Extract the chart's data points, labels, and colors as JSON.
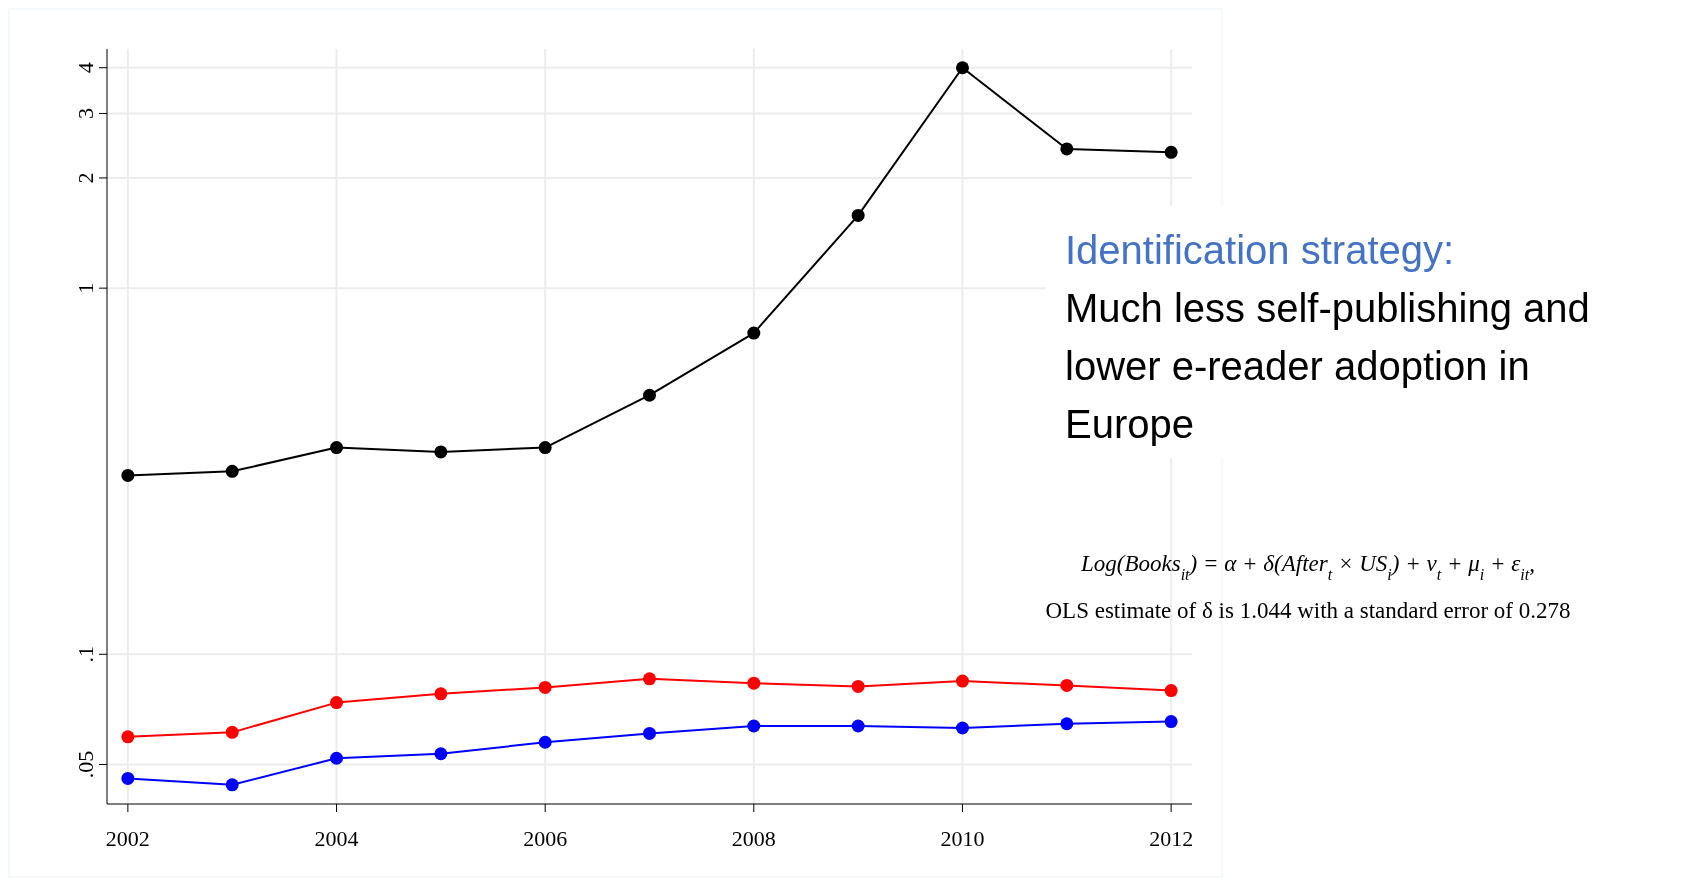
{
  "chart_data": {
    "type": "line",
    "x": [
      2002,
      2003,
      2004,
      2005,
      2006,
      2007,
      2008,
      2009,
      2010,
      2011,
      2012
    ],
    "series": [
      {
        "color": "#000000",
        "values": [
          0.308,
          0.316,
          0.367,
          0.357,
          0.367,
          0.51,
          0.754,
          1.58,
          4.0,
          2.4,
          2.35
        ]
      },
      {
        "color": "#ff0000",
        "values": [
          0.0595,
          0.0612,
          0.0738,
          0.078,
          0.0812,
          0.0857,
          0.0834,
          0.0817,
          0.0845,
          0.0822,
          0.0796
        ]
      },
      {
        "color": "#0000ff",
        "values": [
          0.0458,
          0.044,
          0.052,
          0.0535,
          0.0575,
          0.0608,
          0.0637,
          0.0637,
          0.0629,
          0.0646,
          0.0655
        ]
      }
    ],
    "xlim": [
      2001.8,
      2012.2
    ],
    "xticks": [
      2002,
      2004,
      2006,
      2008,
      2010,
      2012
    ],
    "ylim": [
      0.039,
      4.5
    ],
    "yticks": [
      {
        "value": 0.05,
        "label": ".05"
      },
      {
        "value": 0.1,
        "label": ".1"
      },
      1,
      2,
      3,
      4
    ],
    "log": "y",
    "grid": true,
    "marker": "circle",
    "line_style": "solid",
    "annotations": [
      "Identification strategy:",
      "Much less self-publishing and lower e-reader adoption in Europe",
      "Log(Books$_{it}$) = α + δ(After$_{t}$ × US$_{i}$) + ν$_{t}$ + μ$_{i}$ + ε$_{it}$,",
      "OLS estimate of δ is 1.044 with a standard error of 0.278"
    ]
  }
}
